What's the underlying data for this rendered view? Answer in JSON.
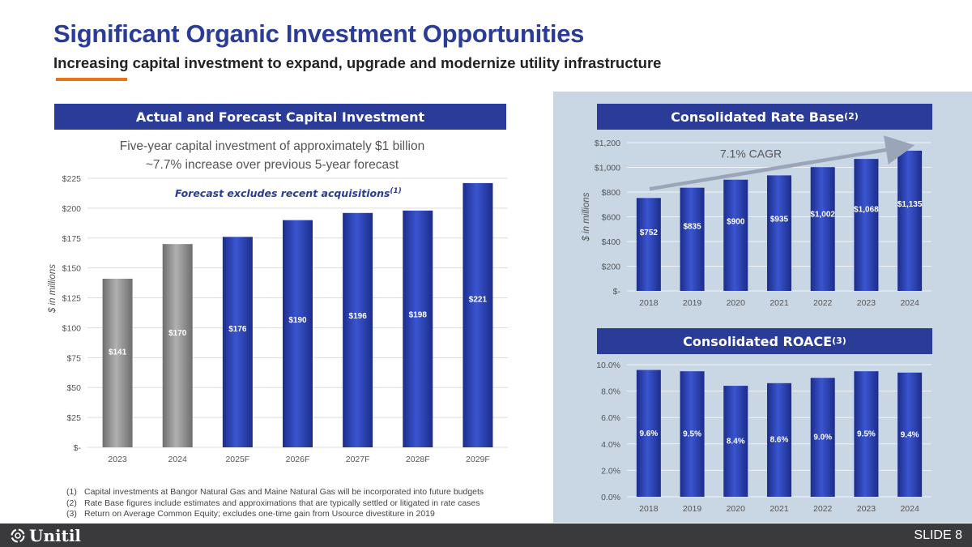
{
  "slide": {
    "title": "Significant Organic Investment Opportunities",
    "subtitle": "Increasing capital investment to expand, upgrade and modernize utility infrastructure",
    "slide_number": "SLIDE 8",
    "logo_text": "Unitil",
    "accent_color": "#e8731a",
    "brand_color": "#2a3c98"
  },
  "capex": {
    "header": "Actual and Forecast Capital Investment",
    "note1": "Five-year capital investment of approximately $1 billion",
    "note2": "~7.7% increase over previous 5-year forecast",
    "forecast_note": "Forecast excludes recent acquisitions",
    "forecast_note_ref": "(1)"
  },
  "rate_base": {
    "header": "Consolidated Rate Base",
    "header_ref": "(2)",
    "cagr_label": "7.1% CAGR"
  },
  "roace": {
    "header": "Consolidated ROACE",
    "header_ref": "(3)"
  },
  "footnotes": [
    {
      "num": "(1)",
      "text": "Capital investments at Bangor Natural Gas and Maine Natural Gas will be incorporated into future budgets"
    },
    {
      "num": "(2)",
      "text": "Rate Base figures include estimates and approximations that are typically settled or litigated in rate cases"
    },
    {
      "num": "(3)",
      "text": "Return on Average Common Equity; excludes one-time gain from Usource divestiture in 2019"
    }
  ],
  "chart_data": [
    {
      "id": "capex",
      "type": "bar",
      "title": "Actual and Forecast Capital Investment",
      "ylabel": "$ in millions",
      "ylim": [
        0,
        225
      ],
      "yticks": [
        0,
        25,
        50,
        75,
        100,
        125,
        150,
        175,
        200,
        225
      ],
      "ytick_labels": [
        "$-",
        "$25",
        "$50",
        "$75",
        "$100",
        "$125",
        "$150",
        "$175",
        "$200",
        "$225"
      ],
      "categories": [
        "2023",
        "2024",
        "2025F",
        "2026F",
        "2027F",
        "2028F",
        "2029F"
      ],
      "values": [
        141,
        170,
        176,
        190,
        196,
        198,
        221
      ],
      "data_labels": [
        "$141",
        "$170",
        "$176",
        "$190",
        "$196",
        "$198",
        "$221"
      ],
      "bar_kinds": [
        "actual",
        "actual",
        "forecast",
        "forecast",
        "forecast",
        "forecast",
        "forecast"
      ],
      "colors": {
        "actual": "#8c8c8c",
        "forecast": "#2a3fb0"
      },
      "grid": true
    },
    {
      "id": "rate_base",
      "type": "bar",
      "title": "Consolidated Rate Base",
      "ylabel": "$ in millions",
      "ylim": [
        0,
        1200
      ],
      "yticks": [
        0,
        200,
        400,
        600,
        800,
        1000,
        1200
      ],
      "ytick_labels": [
        "$-",
        "$200",
        "$400",
        "$600",
        "$800",
        "$1,000",
        "$1,200"
      ],
      "categories": [
        "2018",
        "2019",
        "2020",
        "2021",
        "2022",
        "2023",
        "2024"
      ],
      "values": [
        752,
        835,
        900,
        935,
        1002,
        1068,
        1135
      ],
      "data_labels": [
        "$752",
        "$835",
        "$900",
        "$935",
        "$1,002",
        "$1,068",
        "$1,135"
      ],
      "annotation": "7.1% CAGR",
      "colors": {
        "bar": "#2a3fb0"
      },
      "grid": true
    },
    {
      "id": "roace",
      "type": "bar",
      "title": "Consolidated ROACE",
      "ylim": [
        0,
        10
      ],
      "yticks": [
        0,
        2,
        4,
        6,
        8,
        10
      ],
      "ytick_labels": [
        "0.0%",
        "2.0%",
        "4.0%",
        "6.0%",
        "8.0%",
        "10.0%"
      ],
      "categories": [
        "2018",
        "2019",
        "2020",
        "2021",
        "2022",
        "2023",
        "2024"
      ],
      "values": [
        9.6,
        9.5,
        8.4,
        8.6,
        9.0,
        9.5,
        9.4
      ],
      "data_labels": [
        "9.6%",
        "9.5%",
        "8.4%",
        "8.6%",
        "9.0%",
        "9.5%",
        "9.4%"
      ],
      "colors": {
        "bar": "#2a3fb0"
      },
      "grid": true
    }
  ]
}
